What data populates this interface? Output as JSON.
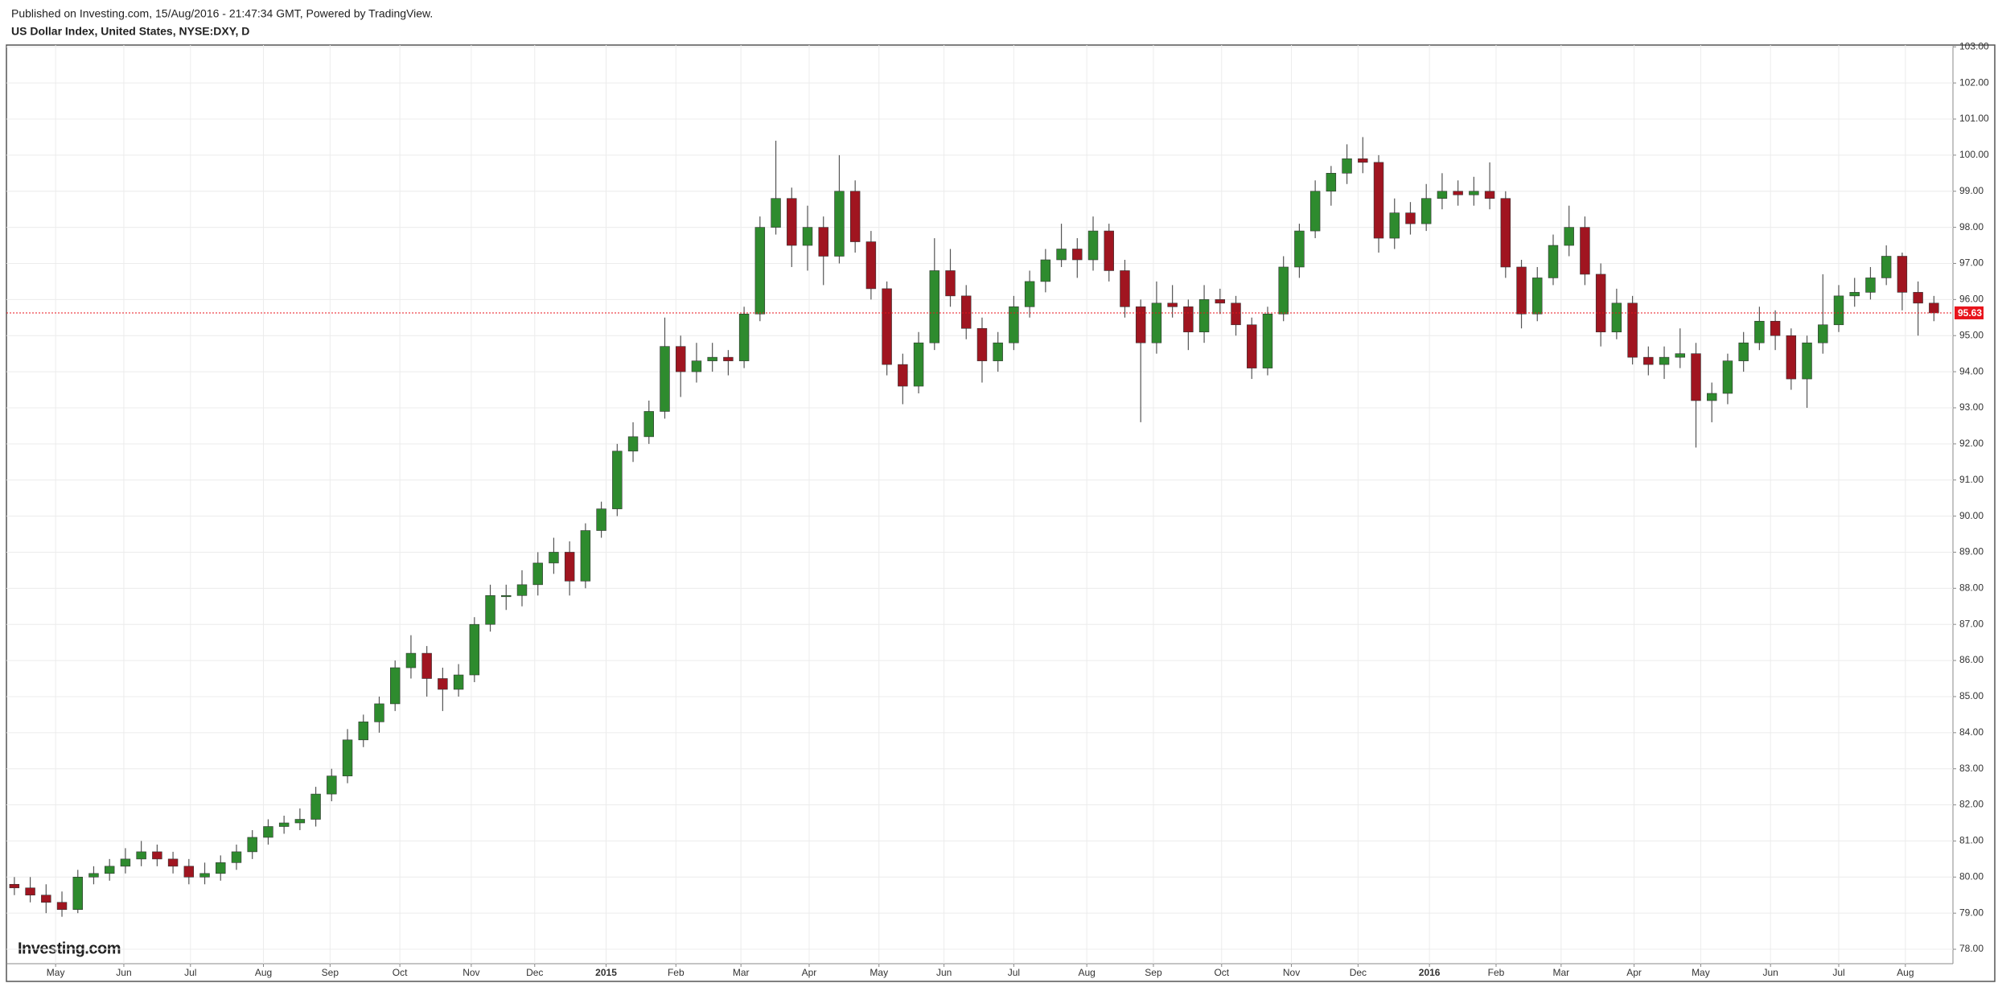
{
  "chart_data": {
    "type": "candlestick",
    "header": "Published on Investing.com, 15/Aug/2016 - 21:47:34 GMT, Powered by TradingView.",
    "title": "US Dollar Index, United States, NYSE:DXY, D",
    "logo": "Investing.com",
    "up_color": "#2e8b2e",
    "down_color": "#a01520",
    "grid": true,
    "last_price": 95.63,
    "last_price_color": "#e8141c",
    "xlim": [
      -0.5,
      122.2
    ],
    "ylim": [
      77.6,
      103.05
    ],
    "yticks": [
      {
        "value": 78,
        "label": "78.00"
      },
      {
        "value": 79,
        "label": "79.00"
      },
      {
        "value": 80,
        "label": "80.00"
      },
      {
        "value": 81,
        "label": "81.00"
      },
      {
        "value": 82,
        "label": "82.00"
      },
      {
        "value": 83,
        "label": "83.00"
      },
      {
        "value": 84,
        "label": "84.00"
      },
      {
        "value": 85,
        "label": "85.00"
      },
      {
        "value": 86,
        "label": "86.00"
      },
      {
        "value": 87,
        "label": "87.00"
      },
      {
        "value": 88,
        "label": "88.00"
      },
      {
        "value": 89,
        "label": "89.00"
      },
      {
        "value": 90,
        "label": "90.00"
      },
      {
        "value": 91,
        "label": "91.00"
      },
      {
        "value": 92,
        "label": "92.00"
      },
      {
        "value": 93,
        "label": "93.00"
      },
      {
        "value": 94,
        "label": "94.00"
      },
      {
        "value": 95,
        "label": "95.00"
      },
      {
        "value": 96,
        "label": "96.00"
      },
      {
        "value": 97,
        "label": "97.00"
      },
      {
        "value": 98,
        "label": "98.00"
      },
      {
        "value": 99,
        "label": "99.00"
      },
      {
        "value": 100,
        "label": "100.00"
      },
      {
        "value": 101,
        "label": "101.00"
      },
      {
        "value": 102,
        "label": "102.00"
      },
      {
        "value": 103,
        "label": "103.00"
      }
    ],
    "xticks": [
      {
        "value": 2.6,
        "label": "May"
      },
      {
        "value": 6.9,
        "label": "Jun"
      },
      {
        "value": 11.1,
        "label": "Jul"
      },
      {
        "value": 15.7,
        "label": "Aug"
      },
      {
        "value": 19.9,
        "label": "Sep"
      },
      {
        "value": 24.3,
        "label": "Oct"
      },
      {
        "value": 28.8,
        "label": "Nov"
      },
      {
        "value": 32.8,
        "label": "Dec"
      },
      {
        "value": 37.3,
        "label": "2015"
      },
      {
        "value": 41.7,
        "label": "Feb"
      },
      {
        "value": 45.8,
        "label": "Mar"
      },
      {
        "value": 50.1,
        "label": "Apr"
      },
      {
        "value": 54.5,
        "label": "May"
      },
      {
        "value": 58.6,
        "label": "Jun"
      },
      {
        "value": 63,
        "label": "Jul"
      },
      {
        "value": 67.6,
        "label": "Aug"
      },
      {
        "value": 71.8,
        "label": "Sep"
      },
      {
        "value": 76.1,
        "label": "Oct"
      },
      {
        "value": 80.5,
        "label": "Nov"
      },
      {
        "value": 84.7,
        "label": "Dec"
      },
      {
        "value": 89.2,
        "label": "2016"
      },
      {
        "value": 93.4,
        "label": "Feb"
      },
      {
        "value": 97.5,
        "label": "Mar"
      },
      {
        "value": 102.1,
        "label": "Apr"
      },
      {
        "value": 106.3,
        "label": "May"
      },
      {
        "value": 110.7,
        "label": "Jun"
      },
      {
        "value": 115,
        "label": "Jul"
      },
      {
        "value": 119.2,
        "label": "Aug"
      }
    ],
    "x": [
      0,
      1,
      2,
      3,
      4,
      5,
      6,
      7,
      8,
      9,
      10,
      11,
      12,
      13,
      14,
      15,
      16,
      17,
      18,
      19,
      20,
      21,
      22,
      23,
      24,
      25,
      26,
      27,
      28,
      29,
      30,
      31,
      32,
      33,
      34,
      35,
      36,
      37,
      38,
      39,
      40,
      41,
      42,
      43,
      44,
      45,
      46,
      47,
      48,
      49,
      50,
      51,
      52,
      53,
      54,
      55,
      56,
      57,
      58,
      59,
      60,
      61,
      62,
      63,
      64,
      65,
      66,
      67,
      68,
      69,
      70,
      71,
      72,
      73,
      74,
      75,
      76,
      77,
      78,
      79,
      80,
      81,
      82,
      83,
      84,
      85,
      86,
      87,
      88,
      89,
      90,
      91,
      92,
      93,
      94,
      95,
      96,
      97,
      98,
      99,
      100,
      101,
      102,
      103,
      104,
      105,
      106,
      107,
      108,
      109,
      110,
      111,
      112,
      113,
      114,
      115,
      116,
      117,
      118,
      119,
      120,
      121
    ],
    "open": [
      79.8,
      79.7,
      79.5,
      79.3,
      79.1,
      80.0,
      80.1,
      80.3,
      80.5,
      80.7,
      80.5,
      80.3,
      80.0,
      80.1,
      80.4,
      80.7,
      81.1,
      81.4,
      81.5,
      81.6,
      82.3,
      82.8,
      83.8,
      84.3,
      84.8,
      85.8,
      86.2,
      85.5,
      85.2,
      85.6,
      87.0,
      87.8,
      87.8,
      88.1,
      88.7,
      89.0,
      88.2,
      89.6,
      90.2,
      91.8,
      92.2,
      92.9,
      94.7,
      94.0,
      94.3,
      94.4,
      94.3,
      95.6,
      98.0,
      98.8,
      97.5,
      98.0,
      97.2,
      99.0,
      97.6,
      96.3,
      94.2,
      93.6,
      94.8,
      96.8,
      96.1,
      95.2,
      94.3,
      94.8,
      95.8,
      96.5,
      97.1,
      97.4,
      97.1,
      97.9,
      96.8,
      95.8,
      94.8,
      95.9,
      95.8,
      95.1,
      96.0,
      95.9,
      95.3,
      94.1,
      95.6,
      96.9,
      97.9,
      99.0,
      99.5,
      99.9,
      99.8,
      97.7,
      98.4,
      98.1,
      98.8,
      99.0,
      98.9,
      99.0,
      98.8,
      96.9,
      95.6,
      96.6,
      97.5,
      98.0,
      96.7,
      95.1,
      95.9,
      94.4,
      94.2,
      94.4,
      94.5,
      93.2,
      93.4,
      94.3,
      94.8,
      95.4,
      95.0,
      93.8,
      94.8,
      95.3,
      96.1,
      96.2,
      96.6,
      97.2,
      96.2,
      95.9
    ],
    "high": [
      80.0,
      80.0,
      79.8,
      79.6,
      80.2,
      80.3,
      80.5,
      80.8,
      81.0,
      80.9,
      80.7,
      80.5,
      80.4,
      80.6,
      80.9,
      81.3,
      81.6,
      81.7,
      81.9,
      82.5,
      83.0,
      84.1,
      84.5,
      85.0,
      86.0,
      86.7,
      86.4,
      85.8,
      85.9,
      87.2,
      88.1,
      88.1,
      88.5,
      89.0,
      89.4,
      89.3,
      89.8,
      90.4,
      92.0,
      92.6,
      93.2,
      95.5,
      95.0,
      94.8,
      94.8,
      94.6,
      95.8,
      98.3,
      100.4,
      99.1,
      98.6,
      98.3,
      100.0,
      99.3,
      97.9,
      96.5,
      94.5,
      95.1,
      97.7,
      97.4,
      96.4,
      95.5,
      95.1,
      96.1,
      96.8,
      97.4,
      98.1,
      97.7,
      98.3,
      98.1,
      97.1,
      96.0,
      96.5,
      96.4,
      96.0,
      96.4,
      96.3,
      96.1,
      95.5,
      95.8,
      97.2,
      98.1,
      99.3,
      99.7,
      100.3,
      100.5,
      100.0,
      98.8,
      98.7,
      99.2,
      99.5,
      99.3,
      99.4,
      99.8,
      99.0,
      97.1,
      96.9,
      97.8,
      98.6,
      98.3,
      97.0,
      96.3,
      96.1,
      94.7,
      94.7,
      95.2,
      94.8,
      93.7,
      94.5,
      95.1,
      95.8,
      95.7,
      95.2,
      95.0,
      96.7,
      96.4,
      96.6,
      96.9,
      97.5,
      97.3,
      96.5,
      96.1
    ],
    "low": [
      79.5,
      79.3,
      79.0,
      78.9,
      79.0,
      79.8,
      79.9,
      80.1,
      80.3,
      80.3,
      80.1,
      79.8,
      79.8,
      79.9,
      80.2,
      80.5,
      80.9,
      81.2,
      81.3,
      81.4,
      82.1,
      82.6,
      83.6,
      84.0,
      84.6,
      85.5,
      85.0,
      84.6,
      85.0,
      85.4,
      86.8,
      87.4,
      87.5,
      87.8,
      88.4,
      87.8,
      88.0,
      89.4,
      90.0,
      91.5,
      92.0,
      92.7,
      93.3,
      93.7,
      94.0,
      93.9,
      94.1,
      95.4,
      97.8,
      96.9,
      96.8,
      96.4,
      97.0,
      97.3,
      96.0,
      93.9,
      93.1,
      93.4,
      94.6,
      95.8,
      94.9,
      93.7,
      94.0,
      94.6,
      95.5,
      96.2,
      96.9,
      96.6,
      96.8,
      96.5,
      95.5,
      92.6,
      94.5,
      95.5,
      94.6,
      94.8,
      95.6,
      95.0,
      93.8,
      93.9,
      95.4,
      96.6,
      97.7,
      98.6,
      99.2,
      99.5,
      97.3,
      97.4,
      97.8,
      97.9,
      98.5,
      98.6,
      98.6,
      98.5,
      96.6,
      95.2,
      95.4,
      96.4,
      97.2,
      96.4,
      94.7,
      94.9,
      94.2,
      93.9,
      93.8,
      94.1,
      91.9,
      92.6,
      93.1,
      94.0,
      94.6,
      94.6,
      93.5,
      93.0,
      94.5,
      95.1,
      95.8,
      96.0,
      96.4,
      95.7,
      95.0,
      95.4
    ],
    "close": [
      79.7,
      79.5,
      79.3,
      79.1,
      80.0,
      80.1,
      80.3,
      80.5,
      80.7,
      80.5,
      80.3,
      80.0,
      80.1,
      80.4,
      80.7,
      81.1,
      81.4,
      81.5,
      81.6,
      82.3,
      82.8,
      83.8,
      84.3,
      84.8,
      85.8,
      86.2,
      85.5,
      85.2,
      85.6,
      87.0,
      87.8,
      87.8,
      88.1,
      88.7,
      89.0,
      88.2,
      89.6,
      90.2,
      91.8,
      92.2,
      92.9,
      94.7,
      94.0,
      94.3,
      94.4,
      94.3,
      95.6,
      98.0,
      98.8,
      97.5,
      98.0,
      97.2,
      99.0,
      97.6,
      96.3,
      94.2,
      93.6,
      94.8,
      96.8,
      96.1,
      95.2,
      94.3,
      94.8,
      95.8,
      96.5,
      97.1,
      97.4,
      97.1,
      97.9,
      96.8,
      95.8,
      94.8,
      95.9,
      95.8,
      95.1,
      96.0,
      95.9,
      95.3,
      94.1,
      95.6,
      96.9,
      97.9,
      99.0,
      99.5,
      99.9,
      99.8,
      97.7,
      98.4,
      98.1,
      98.8,
      99.0,
      98.9,
      99.0,
      98.8,
      96.9,
      95.6,
      96.6,
      97.5,
      98.0,
      96.7,
      95.1,
      95.9,
      94.4,
      94.2,
      94.4,
      94.5,
      93.2,
      93.4,
      94.3,
      94.8,
      95.4,
      95.0,
      93.8,
      94.8,
      95.3,
      96.1,
      96.2,
      96.6,
      97.2,
      96.2,
      95.9,
      95.63
    ]
  }
}
